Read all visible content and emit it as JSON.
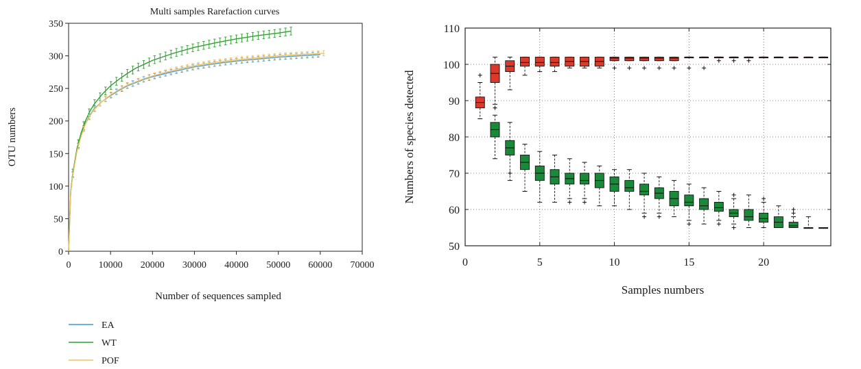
{
  "chart_data": [
    {
      "type": "line",
      "title": "Multi samples Rarefaction curves",
      "xlabel": "Number of sequences sampled",
      "ylabel": "OTU numbers",
      "xlim": [
        0,
        70000
      ],
      "ylim": [
        0,
        350
      ],
      "xticks": [
        0,
        10000,
        20000,
        30000,
        40000,
        50000,
        60000,
        70000
      ],
      "yticks": [
        0,
        50,
        100,
        150,
        200,
        250,
        300,
        350
      ],
      "grid": false,
      "legend_position": "bottom-left",
      "series": [
        {
          "name": "EA",
          "color": "#3a9ad9",
          "x": [
            0,
            500,
            1000,
            2000,
            3000,
            4000,
            5000,
            6000,
            8000,
            10000,
            12000,
            14000,
            16000,
            18000,
            20000,
            25000,
            30000,
            35000,
            40000,
            45000,
            50000,
            55000,
            60000
          ],
          "y": [
            0,
            90,
            118,
            155,
            178,
            196,
            208,
            218,
            230,
            239,
            247,
            254,
            259,
            264,
            268,
            276,
            283,
            288,
            292,
            295,
            298,
            300,
            302
          ]
        },
        {
          "name": "WT",
          "color": "#2ca02c",
          "x": [
            0,
            500,
            1000,
            2000,
            3000,
            4000,
            5000,
            6000,
            8000,
            10000,
            12000,
            14000,
            16000,
            18000,
            20000,
            25000,
            30000,
            35000,
            40000,
            45000,
            50000,
            53000
          ],
          "y": [
            0,
            92,
            120,
            158,
            182,
            200,
            214,
            225,
            241,
            254,
            264,
            273,
            281,
            287,
            293,
            304,
            313,
            320,
            326,
            331,
            335,
            338
          ]
        },
        {
          "name": "POF",
          "color": "#f0c060",
          "x": [
            0,
            500,
            1000,
            2000,
            3000,
            4000,
            5000,
            6000,
            8000,
            10000,
            12000,
            14000,
            16000,
            18000,
            20000,
            25000,
            30000,
            35000,
            40000,
            45000,
            50000,
            55000,
            61000
          ],
          "y": [
            0,
            90,
            117,
            154,
            177,
            195,
            207,
            217,
            230,
            240,
            248,
            255,
            260,
            265,
            269,
            278,
            285,
            290,
            294,
            297,
            300,
            302,
            304
          ]
        }
      ]
    },
    {
      "type": "box",
      "title": "",
      "xlabel": "Samples numbers",
      "ylabel": "Numbers of species detected",
      "xlim": [
        0,
        24.5
      ],
      "ylim": [
        50,
        110
      ],
      "xticks": [
        0,
        5,
        10,
        15,
        20
      ],
      "yticks": [
        50,
        60,
        70,
        80,
        90,
        100,
        110
      ],
      "grid": true,
      "series": [
        {
          "name": "",
          "color": "#d93a2b",
          "boxes": [
            {
              "x": 1,
              "min": 85,
              "q1": 88,
              "median": 89.5,
              "q3": 91,
              "max": 95,
              "outliers": [
                97
              ]
            },
            {
              "x": 2,
              "min": 89,
              "q1": 95,
              "median": 97.5,
              "q3": 100,
              "max": 102,
              "outliers": [
                88
              ]
            },
            {
              "x": 3,
              "min": 93,
              "q1": 98,
              "median": 99.5,
              "q3": 101,
              "max": 102,
              "outliers": []
            },
            {
              "x": 4,
              "min": 97,
              "q1": 99.5,
              "median": 100.5,
              "q3": 102,
              "max": 102,
              "outliers": []
            },
            {
              "x": 5,
              "min": 98,
              "q1": 99.5,
              "median": 100.5,
              "q3": 102,
              "max": 102,
              "outliers": []
            },
            {
              "x": 6,
              "min": 98,
              "q1": 99.5,
              "median": 100.5,
              "q3": 102,
              "max": 102,
              "outliers": []
            },
            {
              "x": 7,
              "min": 99,
              "q1": 99.5,
              "median": 100.8,
              "q3": 102,
              "max": 102,
              "outliers": []
            },
            {
              "x": 8,
              "min": 99,
              "q1": 99.5,
              "median": 100.8,
              "q3": 102,
              "max": 102,
              "outliers": []
            },
            {
              "x": 9,
              "min": 99,
              "q1": 99.5,
              "median": 100.8,
              "q3": 102,
              "max": 102,
              "outliers": []
            },
            {
              "x": 10,
              "min": 101,
              "q1": 101,
              "median": 101.7,
              "q3": 102,
              "max": 102,
              "outliers": [
                99
              ]
            },
            {
              "x": 11,
              "min": 101,
              "q1": 101,
              "median": 101.7,
              "q3": 102,
              "max": 102,
              "outliers": [
                99
              ]
            },
            {
              "x": 12,
              "min": 101,
              "q1": 101,
              "median": 101.7,
              "q3": 102,
              "max": 102,
              "outliers": [
                99
              ]
            },
            {
              "x": 13,
              "min": 101,
              "q1": 101,
              "median": 101.7,
              "q3": 102,
              "max": 102,
              "outliers": [
                99
              ]
            },
            {
              "x": 14,
              "min": 101,
              "q1": 101,
              "median": 101.7,
              "q3": 102,
              "max": 102,
              "outliers": [
                99
              ]
            },
            {
              "x": 15,
              "min": 102,
              "q1": 102,
              "median": 102,
              "q3": 102,
              "max": 102,
              "outliers": [
                99
              ]
            },
            {
              "x": 16,
              "min": 102,
              "q1": 102,
              "median": 102,
              "q3": 102,
              "max": 102,
              "outliers": [
                99
              ]
            },
            {
              "x": 17,
              "min": 102,
              "q1": 102,
              "median": 102,
              "q3": 102,
              "max": 102,
              "outliers": [
                101
              ]
            },
            {
              "x": 18,
              "min": 102,
              "q1": 102,
              "median": 102,
              "q3": 102,
              "max": 102,
              "outliers": [
                101
              ]
            },
            {
              "x": 19,
              "min": 102,
              "q1": 102,
              "median": 102,
              "q3": 102,
              "max": 102,
              "outliers": [
                101
              ]
            },
            {
              "x": 20,
              "min": 102,
              "q1": 102,
              "median": 102,
              "q3": 102,
              "max": 102,
              "outliers": []
            },
            {
              "x": 21,
              "min": 102,
              "q1": 102,
              "median": 102,
              "q3": 102,
              "max": 102,
              "outliers": []
            },
            {
              "x": 22,
              "min": 102,
              "q1": 102,
              "median": 102,
              "q3": 102,
              "max": 102,
              "outliers": []
            },
            {
              "x": 23,
              "min": 102,
              "q1": 102,
              "median": 102,
              "q3": 102,
              "max": 102,
              "outliers": []
            },
            {
              "x": 24,
              "min": 102,
              "q1": 102,
              "median": 102,
              "q3": 102,
              "max": 102,
              "outliers": []
            }
          ]
        },
        {
          "name": "",
          "color": "#1a8a3a",
          "boxes": [
            {
              "x": 2,
              "min": 74,
              "q1": 80,
              "median": 82,
              "q3": 84,
              "max": 86,
              "outliers": [
                88
              ]
            },
            {
              "x": 3,
              "min": 68,
              "q1": 75,
              "median": 77,
              "q3": 79,
              "max": 84,
              "outliers": [
                70
              ]
            },
            {
              "x": 4,
              "min": 65,
              "q1": 71,
              "median": 73,
              "q3": 75,
              "max": 78,
              "outliers": []
            },
            {
              "x": 5,
              "min": 62,
              "q1": 68,
              "median": 70,
              "q3": 72,
              "max": 76,
              "outliers": []
            },
            {
              "x": 6,
              "min": 62,
              "q1": 67,
              "median": 69,
              "q3": 71,
              "max": 75,
              "outliers": []
            },
            {
              "x": 7,
              "min": 63,
              "q1": 67,
              "median": 68.5,
              "q3": 70,
              "max": 74,
              "outliers": [
                62
              ]
            },
            {
              "x": 8,
              "min": 63,
              "q1": 67,
              "median": 68,
              "q3": 70,
              "max": 73,
              "outliers": [
                62
              ]
            },
            {
              "x": 9,
              "min": 61,
              "q1": 66,
              "median": 68,
              "q3": 70,
              "max": 72,
              "outliers": []
            },
            {
              "x": 10,
              "min": 61,
              "q1": 65,
              "median": 67,
              "q3": 69,
              "max": 71,
              "outliers": []
            },
            {
              "x": 11,
              "min": 60,
              "q1": 65,
              "median": 66,
              "q3": 68,
              "max": 71,
              "outliers": []
            },
            {
              "x": 12,
              "min": 59,
              "q1": 64,
              "median": 65,
              "q3": 67,
              "max": 70,
              "outliers": [
                58
              ]
            },
            {
              "x": 13,
              "min": 59,
              "q1": 63,
              "median": 64.5,
              "q3": 66,
              "max": 69,
              "outliers": [
                58
              ]
            },
            {
              "x": 14,
              "min": 58,
              "q1": 61,
              "median": 63,
              "q3": 65,
              "max": 68,
              "outliers": []
            },
            {
              "x": 15,
              "min": 57,
              "q1": 61,
              "median": 62,
              "q3": 64,
              "max": 67,
              "outliers": [
                56
              ]
            },
            {
              "x": 16,
              "min": 56,
              "q1": 60,
              "median": 61,
              "q3": 63,
              "max": 66,
              "outliers": []
            },
            {
              "x": 17,
              "min": 57,
              "q1": 59.5,
              "median": 60.5,
              "q3": 62,
              "max": 65,
              "outliers": [
                56
              ]
            },
            {
              "x": 18,
              "min": 56,
              "q1": 58,
              "median": 59,
              "q3": 60,
              "max": 63,
              "outliers": [
                55,
                64
              ]
            },
            {
              "x": 19,
              "min": 55,
              "q1": 57,
              "median": 58,
              "q3": 60,
              "max": 64,
              "outliers": []
            },
            {
              "x": 20,
              "min": 55,
              "q1": 56.5,
              "median": 57.5,
              "q3": 59,
              "max": 62,
              "outliers": [
                63
              ]
            },
            {
              "x": 21,
              "min": 55,
              "q1": 55,
              "median": 56.5,
              "q3": 58,
              "max": 61,
              "outliers": []
            },
            {
              "x": 22,
              "min": 55,
              "q1": 55,
              "median": 55.5,
              "q3": 56.5,
              "max": 58,
              "outliers": [
                59,
                60
              ]
            },
            {
              "x": 23,
              "min": 55,
              "q1": 55,
              "median": 55,
              "q3": 55,
              "max": 58,
              "outliers": []
            },
            {
              "x": 24,
              "min": 55,
              "q1": 55,
              "median": 55,
              "q3": 55,
              "max": 55,
              "outliers": []
            }
          ]
        }
      ]
    }
  ]
}
